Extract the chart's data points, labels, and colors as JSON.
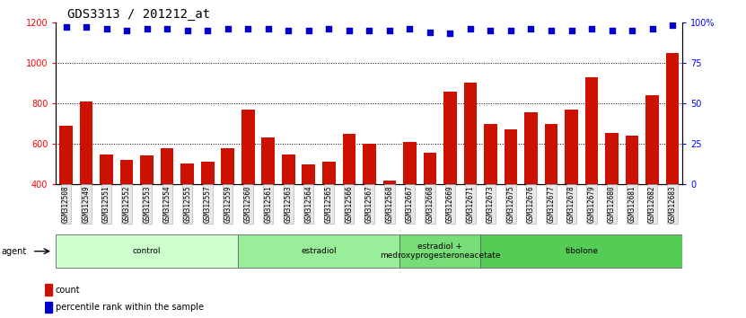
{
  "title": "GDS3313 / 201212_at",
  "samples": [
    "GSM312508",
    "GSM312549",
    "GSM312551",
    "GSM312552",
    "GSM312553",
    "GSM312554",
    "GSM312555",
    "GSM312557",
    "GSM312559",
    "GSM312560",
    "GSM312561",
    "GSM312563",
    "GSM312564",
    "GSM312565",
    "GSM312566",
    "GSM312567",
    "GSM312568",
    "GSM312667",
    "GSM312668",
    "GSM312669",
    "GSM312671",
    "GSM312673",
    "GSM312675",
    "GSM312676",
    "GSM312677",
    "GSM312678",
    "GSM312679",
    "GSM312680",
    "GSM312681",
    "GSM312682",
    "GSM312683"
  ],
  "counts": [
    690,
    810,
    548,
    520,
    543,
    580,
    505,
    510,
    580,
    770,
    630,
    548,
    500,
    510,
    650,
    600,
    420,
    610,
    555,
    860,
    900,
    700,
    670,
    755,
    700,
    770,
    930,
    655,
    640,
    840,
    1050
  ],
  "percentile_ranks": [
    97,
    97,
    96,
    95,
    96,
    96,
    95,
    95,
    96,
    96,
    96,
    95,
    95,
    96,
    95,
    95,
    95,
    96,
    94,
    93,
    96,
    95,
    95,
    96,
    95,
    95,
    96,
    95,
    95,
    96,
    98
  ],
  "groups": [
    {
      "name": "control",
      "start": 0,
      "end": 9,
      "color": "#ccffcc"
    },
    {
      "name": "estradiol",
      "start": 9,
      "end": 17,
      "color": "#99ee99"
    },
    {
      "name": "estradiol +\nmedroxyprogesteroneacetate",
      "start": 17,
      "end": 21,
      "color": "#77dd77"
    },
    {
      "name": "tibolone",
      "start": 21,
      "end": 31,
      "color": "#55cc55"
    }
  ],
  "bar_color": "#cc1100",
  "dot_color": "#0000cc",
  "ylim_left": [
    400,
    1200
  ],
  "ylim_right": [
    0,
    100
  ],
  "yticks_left": [
    400,
    600,
    800,
    1000,
    1200
  ],
  "yticks_right": [
    0,
    25,
    50,
    75,
    100
  ],
  "grid_values": [
    600,
    800,
    1000
  ],
  "title_fontsize": 10,
  "tick_label_fontsize": 5.5,
  "group_label_fontsize": 6.5
}
